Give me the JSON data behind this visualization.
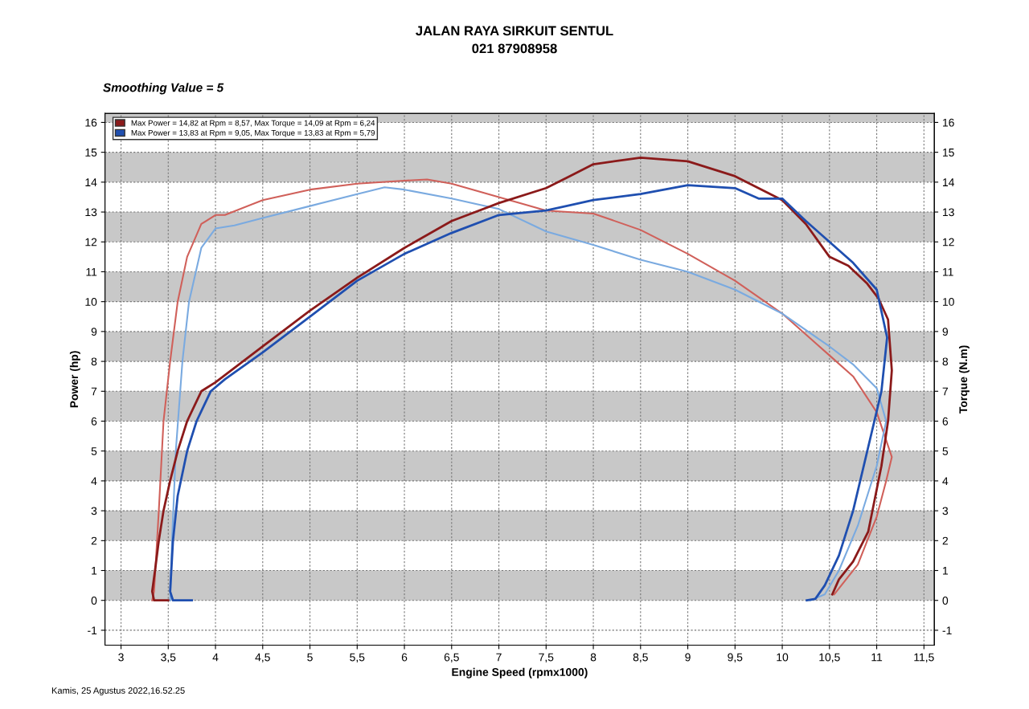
{
  "chart_data": {
    "type": "line",
    "annotations": [
      "JALAN RAYA SIRKUIT SENTUL",
      "021 87908958",
      "Smoothing Value = 5",
      "Kamis, 25 Agustus 2022,16.52.25"
    ],
    "xlabel": "Engine Speed (rpmx1000)",
    "ylabel": "Power (hp)",
    "y2label": "Torque (N.m)",
    "xlim": [
      2.83,
      11.61
    ],
    "ylim": [
      -1.5,
      16.3
    ],
    "y2lim": [
      -1.5,
      16.3
    ],
    "xticks": [
      3,
      {
        "value": 3.5,
        "label": "3,5"
      },
      4,
      {
        "value": 4.5,
        "label": "4,5"
      },
      5,
      {
        "value": 5.5,
        "label": "5,5"
      },
      6,
      {
        "value": 6.5,
        "label": "6,5"
      },
      7,
      {
        "value": 7.5,
        "label": "7,5"
      },
      8,
      {
        "value": 8.5,
        "label": "8,5"
      },
      9,
      {
        "value": 9.5,
        "label": "9,5"
      },
      10,
      {
        "value": 10.5,
        "label": "10,5"
      },
      11,
      {
        "value": 11.5,
        "label": "11,5"
      }
    ],
    "yticks": [
      -1,
      0,
      1,
      2,
      3,
      4,
      5,
      6,
      7,
      8,
      9,
      10,
      11,
      12,
      13,
      14,
      15,
      16
    ],
    "y2ticks": [
      -1,
      0,
      1,
      2,
      3,
      4,
      5,
      6,
      7,
      8,
      9,
      10,
      11,
      12,
      13,
      14,
      15,
      16
    ],
    "bands": [
      {
        "axis": "y",
        "from": 0,
        "to": 1,
        "color": "#c8c8c8"
      },
      {
        "axis": "y",
        "from": 2,
        "to": 3,
        "color": "#c8c8c8"
      },
      {
        "axis": "y",
        "from": 4,
        "to": 5,
        "color": "#c8c8c8"
      },
      {
        "axis": "y",
        "from": 6,
        "to": 7,
        "color": "#c8c8c8"
      },
      {
        "axis": "y",
        "from": 8,
        "to": 9,
        "color": "#c8c8c8"
      },
      {
        "axis": "y",
        "from": 10,
        "to": 11,
        "color": "#c8c8c8"
      },
      {
        "axis": "y",
        "from": 12,
        "to": 13,
        "color": "#c8c8c8"
      },
      {
        "axis": "y",
        "from": 14,
        "to": 15,
        "color": "#c8c8c8"
      },
      {
        "axis": "y",
        "from": 16,
        "to": 16.3,
        "color": "#c8c8c8"
      }
    ],
    "grid": true,
    "legend": "top left",
    "line_style": "solid",
    "marker": "none",
    "series": [
      {
        "name": "Max Power = 14,82 at Rpm = 8,57, Max Torque = 14,09 at Rpm = 6,24",
        "color": "#8b1a1a",
        "x": [
          3.5,
          3.35,
          3.33,
          3.36,
          3.4,
          3.45,
          3.52,
          3.6,
          3.7,
          3.85,
          4,
          4.5,
          5,
          5.5,
          6,
          6.5,
          7,
          7.5,
          7.75,
          8,
          8.5,
          9,
          9.5,
          10,
          10.25,
          10.5,
          10.7,
          10.9,
          11.02,
          11.12,
          11.16,
          11.12,
          11.05,
          10.91,
          10.75,
          10.6,
          10.53
        ],
        "values": [
          0,
          0,
          0.3,
          1,
          2,
          3,
          4,
          5,
          6,
          7,
          7.3,
          8.5,
          9.7,
          10.8,
          11.8,
          12.7,
          13.3,
          13.8,
          14.2,
          14.6,
          14.82,
          14.7,
          14.2,
          13.4,
          12.6,
          11.5,
          11.2,
          10.6,
          10.1,
          9.4,
          7.7,
          6,
          4.5,
          2.3,
          1.3,
          0.7,
          0.2
        ]
      },
      {
        "color": "#d0605a",
        "axis": "y2",
        "x": [
          3.33,
          3.35,
          3.4,
          3.45,
          3.52,
          3.6,
          3.7,
          3.85,
          4,
          4.1,
          4.5,
          5,
          5.5,
          6,
          6.24,
          6.5,
          7,
          7.5,
          8,
          8.5,
          9,
          9.5,
          10,
          10.5,
          10.75,
          11,
          11.16,
          11.1,
          11,
          10.8,
          10.6,
          10.55
        ],
        "values": [
          0,
          0.3,
          3,
          6,
          8,
          10,
          11.5,
          12.6,
          12.9,
          12.9,
          13.4,
          13.75,
          13.95,
          14.05,
          14.09,
          13.95,
          13.5,
          13.05,
          12.95,
          12.4,
          11.6,
          10.7,
          9.6,
          8.2,
          7.5,
          6.3,
          4.8,
          4,
          2.8,
          1.2,
          0.4,
          0.2
        ]
      },
      {
        "name": "Max Power = 13,83 at Rpm = 9,05, Max Torque = 13,83 at Rpm = 5,79",
        "color": "#1f4fb0",
        "x": [
          3.75,
          3.55,
          3.52,
          3.55,
          3.6,
          3.7,
          3.8,
          3.95,
          4.1,
          4.5,
          5,
          5.5,
          6,
          6.5,
          7,
          7.5,
          8,
          8.5,
          9,
          9.5,
          9.75,
          10,
          10.25,
          10.5,
          10.75,
          11,
          11.11,
          11.05,
          10.9,
          10.75,
          10.6,
          10.45,
          10.35,
          10.26
        ],
        "values": [
          0,
          0,
          0.3,
          2,
          3.5,
          5,
          6,
          7,
          7.4,
          8.3,
          9.5,
          10.7,
          11.6,
          12.3,
          12.9,
          13.05,
          13.4,
          13.6,
          13.9,
          13.8,
          13.45,
          13.45,
          12.7,
          12,
          11.3,
          10.4,
          8.8,
          7,
          5,
          3,
          1.5,
          0.5,
          0.05,
          0
        ]
      },
      {
        "color": "#7aaae0",
        "axis": "y2",
        "x": [
          3.52,
          3.54,
          3.58,
          3.65,
          3.72,
          3.85,
          4,
          4.2,
          4.5,
          5,
          5.5,
          5.79,
          6,
          6.5,
          7,
          7.5,
          8,
          8.5,
          9,
          9.5,
          10,
          10.5,
          10.75,
          11,
          11.1,
          11,
          10.8,
          10.6,
          10.45,
          10.3
        ],
        "values": [
          0,
          2,
          5,
          8,
          10,
          11.8,
          12.45,
          12.55,
          12.8,
          13.2,
          13.6,
          13.83,
          13.75,
          13.45,
          13.1,
          12.35,
          11.9,
          11.4,
          11,
          10.4,
          9.6,
          8.5,
          7.9,
          7.1,
          6,
          4.5,
          2.5,
          1,
          0.2,
          0
        ]
      }
    ]
  }
}
